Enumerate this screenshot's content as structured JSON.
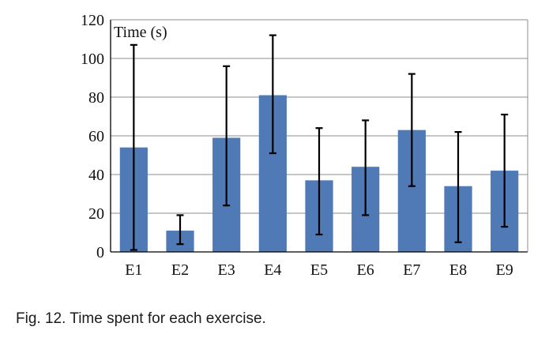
{
  "chart_data": {
    "type": "bar",
    "ylabel": "Time (s)",
    "categories": [
      "E1",
      "E2",
      "E3",
      "E4",
      "E5",
      "E6",
      "E7",
      "E8",
      "E9"
    ],
    "values": [
      54,
      11,
      59,
      81,
      37,
      44,
      63,
      34,
      42
    ],
    "error_low": [
      1,
      4,
      24,
      51,
      9,
      19,
      34,
      5,
      13
    ],
    "error_high": [
      107,
      19,
      96,
      112,
      64,
      68,
      92,
      62,
      71
    ],
    "ylim": [
      0,
      120
    ],
    "yticks": [
      0,
      20,
      40,
      60,
      80,
      100,
      120
    ],
    "grid": true,
    "bar_color": "#4f7ab6"
  },
  "caption": "Fig. 12. Time spent for each exercise."
}
